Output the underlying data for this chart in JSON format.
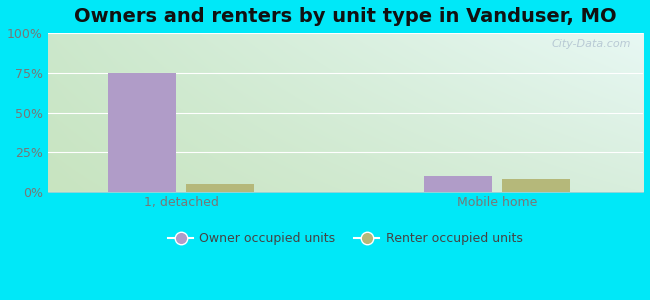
{
  "title": "Owners and renters by unit type in Vanduser, MO",
  "categories": [
    "1, detached",
    "Mobile home"
  ],
  "owner_values": [
    75,
    10
  ],
  "renter_values": [
    5,
    8
  ],
  "owner_color": "#b09cc8",
  "renter_color": "#b5b87a",
  "bg_top_left": "#d8edd8",
  "bg_top_right": "#e8f5f0",
  "bg_bottom_left": "#d0e8c8",
  "bg_bottom_right": "#d8f0e0",
  "outer_bg": "#00e8f8",
  "yticks": [
    0,
    25,
    50,
    75,
    100
  ],
  "ytick_labels": [
    "0%",
    "25%",
    "50%",
    "75%",
    "100%"
  ],
  "ylim": [
    0,
    100
  ],
  "bar_width": 0.28,
  "watermark": "City-Data.com",
  "legend_owner": "Owner occupied units",
  "legend_renter": "Renter occupied units",
  "title_fontsize": 14,
  "tick_fontsize": 9,
  "legend_fontsize": 9,
  "grid_color": "#ffffff",
  "tick_color": "#777777",
  "title_color": "#111111"
}
